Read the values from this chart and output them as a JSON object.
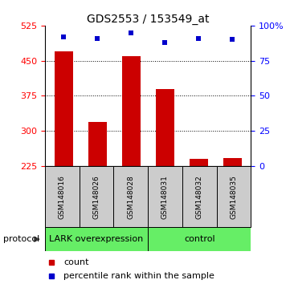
{
  "title": "GDS2553 / 153549_at",
  "samples": [
    "GSM148016",
    "GSM148026",
    "GSM148028",
    "GSM148031",
    "GSM148032",
    "GSM148035"
  ],
  "counts": [
    470,
    320,
    460,
    390,
    240,
    242
  ],
  "percentiles": [
    92,
    91,
    95,
    88,
    91,
    90
  ],
  "ylim_left": [
    225,
    525
  ],
  "ylim_right": [
    0,
    100
  ],
  "left_ticks": [
    225,
    300,
    375,
    450,
    525
  ],
  "right_ticks": [
    0,
    25,
    50,
    75,
    100
  ],
  "right_tick_labels": [
    "0",
    "25",
    "50",
    "75",
    "100%"
  ],
  "grid_lines": [
    300,
    375,
    450
  ],
  "bar_color": "#cc0000",
  "marker_color": "#0000cc",
  "bar_bottom": 225,
  "group1_label": "LARK overexpression",
  "group2_label": "control",
  "group_color": "#66ee66",
  "sample_box_color": "#cccccc",
  "protocol_label": "protocol",
  "legend_count_label": "count",
  "legend_pct_label": "percentile rank within the sample",
  "title_fontsize": 10,
  "tick_fontsize": 8,
  "sample_fontsize": 6.5,
  "group_fontsize": 8,
  "legend_fontsize": 8
}
